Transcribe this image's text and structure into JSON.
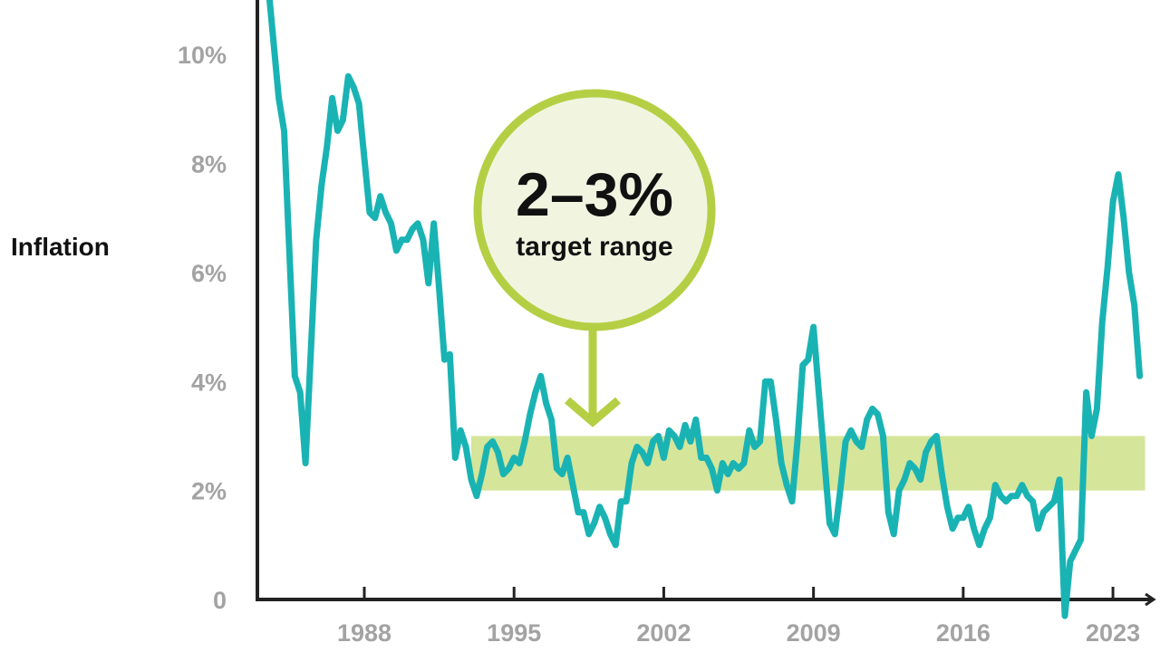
{
  "chart_data": {
    "type": "line",
    "title": "",
    "xlabel": "",
    "ylabel": "Inflation",
    "x_ticks": [
      {
        "value": 1988,
        "label": "1988"
      },
      {
        "value": 1995,
        "label": "1995"
      },
      {
        "value": 2002,
        "label": "2002"
      },
      {
        "value": 2009,
        "label": "2009"
      },
      {
        "value": 2016,
        "label": "2016"
      },
      {
        "value": 2023,
        "label": "2023"
      }
    ],
    "y_ticks": [
      {
        "value": 0,
        "label": "0"
      },
      {
        "value": 2,
        "label": "2%"
      },
      {
        "value": 4,
        "label": "4%"
      },
      {
        "value": 6,
        "label": "6%"
      },
      {
        "value": 8,
        "label": "8%"
      },
      {
        "value": 10,
        "label": "10%"
      }
    ],
    "xlim": [
      1983,
      2025.2
    ],
    "ylim": [
      0,
      11
    ],
    "grid": false,
    "colors": {
      "line": "#1ab3b4",
      "band": "#d5e59a",
      "badge_fill": "#f1f5e0",
      "badge_ring": "#b5cf45",
      "axis": "#222222"
    },
    "target_band": {
      "x_start": 1993.0,
      "x_end": 2024.5,
      "y_low": 2,
      "y_high": 3
    },
    "annotation": {
      "big": "2–3%",
      "small": "target range"
    },
    "series": [
      {
        "points": [
          [
            1983.5,
            11.3
          ],
          [
            1984.0,
            9.2
          ],
          [
            1984.25,
            8.6
          ],
          [
            1984.75,
            4.1
          ],
          [
            1985.0,
            3.8
          ],
          [
            1985.25,
            2.5
          ],
          [
            1985.75,
            6.6
          ],
          [
            1986.0,
            7.6
          ],
          [
            1986.25,
            8.3
          ],
          [
            1986.5,
            9.2
          ],
          [
            1986.75,
            8.6
          ],
          [
            1987.0,
            8.8
          ],
          [
            1987.25,
            9.6
          ],
          [
            1987.5,
            9.4
          ],
          [
            1987.75,
            9.1
          ],
          [
            1988.0,
            8.1
          ],
          [
            1988.25,
            7.1
          ],
          [
            1988.5,
            7.0
          ],
          [
            1988.75,
            7.4
          ],
          [
            1989.0,
            7.1
          ],
          [
            1989.25,
            6.9
          ],
          [
            1989.5,
            6.4
          ],
          [
            1989.75,
            6.6
          ],
          [
            1990.0,
            6.6
          ],
          [
            1990.25,
            6.8
          ],
          [
            1990.5,
            6.9
          ],
          [
            1990.75,
            6.6
          ],
          [
            1991.0,
            5.8
          ],
          [
            1991.25,
            6.9
          ],
          [
            1991.5,
            5.7
          ],
          [
            1991.75,
            4.4
          ],
          [
            1992.0,
            4.5
          ],
          [
            1992.25,
            2.6
          ],
          [
            1992.5,
            3.1
          ],
          [
            1992.75,
            2.8
          ],
          [
            1993.0,
            2.2
          ],
          [
            1993.25,
            1.9
          ],
          [
            1993.5,
            2.3
          ],
          [
            1993.75,
            2.8
          ],
          [
            1994.0,
            2.9
          ],
          [
            1994.25,
            2.7
          ],
          [
            1994.5,
            2.3
          ],
          [
            1994.75,
            2.4
          ],
          [
            1995.0,
            2.6
          ],
          [
            1995.25,
            2.5
          ],
          [
            1995.5,
            2.9
          ],
          [
            1995.75,
            3.4
          ],
          [
            1996.0,
            3.8
          ],
          [
            1996.25,
            4.1
          ],
          [
            1996.5,
            3.6
          ],
          [
            1996.75,
            3.3
          ],
          [
            1997.0,
            2.4
          ],
          [
            1997.25,
            2.3
          ],
          [
            1997.5,
            2.6
          ],
          [
            1997.75,
            2.1
          ],
          [
            1998.0,
            1.6
          ],
          [
            1998.25,
            1.6
          ],
          [
            1998.5,
            1.2
          ],
          [
            1998.75,
            1.4
          ],
          [
            1999.0,
            1.7
          ],
          [
            1999.25,
            1.5
          ],
          [
            1999.5,
            1.2
          ],
          [
            1999.75,
            1.0
          ],
          [
            2000.0,
            1.8
          ],
          [
            2000.25,
            1.8
          ],
          [
            2000.5,
            2.5
          ],
          [
            2000.75,
            2.8
          ],
          [
            2001.0,
            2.7
          ],
          [
            2001.25,
            2.5
          ],
          [
            2001.5,
            2.9
          ],
          [
            2001.75,
            3.0
          ],
          [
            2002.0,
            2.6
          ],
          [
            2002.25,
            3.1
          ],
          [
            2002.5,
            3.0
          ],
          [
            2002.75,
            2.8
          ],
          [
            2003.0,
            3.2
          ],
          [
            2003.25,
            2.9
          ],
          [
            2003.5,
            3.3
          ],
          [
            2003.75,
            2.6
          ],
          [
            2004.0,
            2.6
          ],
          [
            2004.25,
            2.4
          ],
          [
            2004.5,
            2.0
          ],
          [
            2004.75,
            2.5
          ],
          [
            2005.0,
            2.3
          ],
          [
            2005.25,
            2.5
          ],
          [
            2005.5,
            2.4
          ],
          [
            2005.75,
            2.5
          ],
          [
            2006.0,
            3.1
          ],
          [
            2006.25,
            2.8
          ],
          [
            2006.5,
            2.9
          ],
          [
            2006.75,
            4.0
          ],
          [
            2007.0,
            4.0
          ],
          [
            2007.25,
            3.3
          ],
          [
            2007.5,
            2.5
          ],
          [
            2007.75,
            2.1
          ],
          [
            2008.0,
            1.8
          ],
          [
            2008.25,
            2.9
          ],
          [
            2008.5,
            4.3
          ],
          [
            2008.75,
            4.4
          ],
          [
            2009.0,
            5.0
          ],
          [
            2009.25,
            3.8
          ],
          [
            2009.5,
            2.6
          ],
          [
            2009.75,
            1.4
          ],
          [
            2010.0,
            1.2
          ],
          [
            2010.25,
            2.0
          ],
          [
            2010.5,
            2.9
          ],
          [
            2010.75,
            3.1
          ],
          [
            2011.0,
            2.9
          ],
          [
            2011.25,
            2.8
          ],
          [
            2011.5,
            3.3
          ],
          [
            2011.75,
            3.5
          ],
          [
            2012.0,
            3.4
          ],
          [
            2012.25,
            3.0
          ],
          [
            2012.5,
            1.6
          ],
          [
            2012.75,
            1.2
          ],
          [
            2013.0,
            2.0
          ],
          [
            2013.25,
            2.2
          ],
          [
            2013.5,
            2.5
          ],
          [
            2013.75,
            2.4
          ],
          [
            2014.0,
            2.2
          ],
          [
            2014.25,
            2.7
          ],
          [
            2014.5,
            2.9
          ],
          [
            2014.75,
            3.0
          ],
          [
            2015.0,
            2.3
          ],
          [
            2015.25,
            1.7
          ],
          [
            2015.5,
            1.3
          ],
          [
            2015.75,
            1.5
          ],
          [
            2016.0,
            1.5
          ],
          [
            2016.25,
            1.7
          ],
          [
            2016.5,
            1.3
          ],
          [
            2016.75,
            1.0
          ],
          [
            2017.0,
            1.3
          ],
          [
            2017.25,
            1.5
          ],
          [
            2017.5,
            2.1
          ],
          [
            2017.75,
            1.9
          ],
          [
            2018.0,
            1.8
          ],
          [
            2018.25,
            1.9
          ],
          [
            2018.5,
            1.9
          ],
          [
            2018.75,
            2.1
          ],
          [
            2019.0,
            1.9
          ],
          [
            2019.25,
            1.8
          ],
          [
            2019.5,
            1.3
          ],
          [
            2019.75,
            1.6
          ],
          [
            2020.0,
            1.7
          ],
          [
            2020.25,
            1.8
          ],
          [
            2020.5,
            2.2
          ],
          [
            2020.75,
            -0.3
          ],
          [
            2021.0,
            0.7
          ],
          [
            2021.25,
            0.9
          ],
          [
            2021.5,
            1.1
          ],
          [
            2021.75,
            3.8
          ],
          [
            2022.0,
            3.0
          ],
          [
            2022.25,
            3.5
          ],
          [
            2022.5,
            5.1
          ],
          [
            2022.75,
            6.1
          ],
          [
            2023.0,
            7.3
          ],
          [
            2023.25,
            7.8
          ],
          [
            2023.5,
            7.0
          ],
          [
            2023.75,
            6.0
          ],
          [
            2024.0,
            5.4
          ],
          [
            2024.25,
            4.1
          ]
        ]
      }
    ]
  }
}
